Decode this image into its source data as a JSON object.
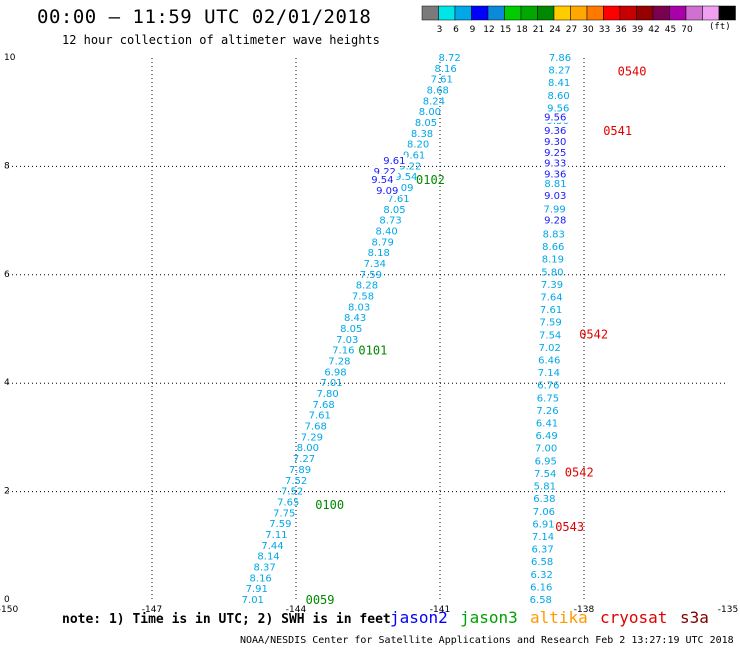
{
  "header": {
    "title": "00:00 – 11:59 UTC 02/01/2018",
    "subtitle": "12 hour collection of altimeter wave heights"
  },
  "colorbar": {
    "colors": [
      "#7a7a7a",
      "#00e5e5",
      "#00a8e8",
      "#0000ff",
      "#0a8ad8",
      "#00cc00",
      "#00a800",
      "#008800",
      "#ffcc00",
      "#ffa800",
      "#ff7800",
      "#ff0000",
      "#c80000",
      "#960000",
      "#7a0050",
      "#aa00aa",
      "#d070d0",
      "#f0a0f0",
      "#000000"
    ],
    "ticks": [
      "3",
      "6",
      "9",
      "12",
      "15",
      "18",
      "21",
      "24",
      "27",
      "30",
      "33",
      "36",
      "39",
      "42",
      "45",
      "70"
    ],
    "unit": "(ft)"
  },
  "chart_data": {
    "type": "scatter",
    "xlim": [
      -150,
      -135
    ],
    "ylim": [
      0,
      10
    ],
    "xticks": [
      -150,
      -147,
      -144,
      -141,
      -138,
      -135
    ],
    "yticks": [
      0,
      2,
      4,
      6,
      8,
      10
    ],
    "grid": true,
    "series": [
      {
        "name": "jason2",
        "color": "#1a1aff",
        "points": [
          {
            "x": -138.6,
            "y": 8.9,
            "label": "9.56"
          },
          {
            "x": -138.6,
            "y": 8.65,
            "label": "9.36"
          },
          {
            "x": -138.6,
            "y": 8.45,
            "label": "9.30"
          },
          {
            "x": -138.6,
            "y": 8.25,
            "label": "9.25"
          },
          {
            "x": -138.6,
            "y": 8.05,
            "label": "9.33"
          },
          {
            "x": -138.6,
            "y": 7.85,
            "label": "9.36"
          },
          {
            "x": -138.6,
            "y": 7.45,
            "label": "9.03"
          },
          {
            "x": -138.6,
            "y": 7.0,
            "label": "9.28"
          },
          {
            "x": -141.95,
            "y": 8.1,
            "label": "9.61"
          },
          {
            "x": -142.15,
            "y": 7.9,
            "label": "9.22"
          },
          {
            "x": -142.2,
            "y": 7.75,
            "label": "9.54"
          },
          {
            "x": -142.1,
            "y": 7.55,
            "label": "9.09"
          }
        ]
      }
    ],
    "tracks": [
      {
        "satellite": "jason3",
        "color": "#00a8e8",
        "x_start": -144.9,
        "y_start": 0.0,
        "x_end": -140.8,
        "y_end": 10.0,
        "values": [
          "7.01",
          "7.91",
          "8.16",
          "8.37",
          "8.14",
          "7.44",
          "7.11",
          "7.59",
          "7.75",
          "7.65",
          "7.52",
          "7.52",
          "7.89",
          "7.27",
          "8.00",
          "7.29",
          "7.68",
          "7.61",
          "7.68",
          "7.80",
          "7.01",
          "6.98",
          "7.28",
          "7.16",
          "7.03",
          "8.05",
          "8.43",
          "8.03",
          "7.58",
          "8.28",
          "7.59",
          "7.34",
          "8.18",
          "8.79",
          "8.40",
          "8.73",
          "8.05",
          "7.61",
          "9.09",
          "9.54",
          "9.22",
          "9.61",
          "8.20",
          "8.38",
          "8.05",
          "8.00",
          "8.24",
          "8.68",
          "7.61",
          "8.16",
          "8.72"
        ],
        "label_color": "#00a8e8"
      },
      {
        "satellite": "cryosat",
        "color": "#00a8e8",
        "x_start": -138.9,
        "y_start": 0.0,
        "x_end": -138.5,
        "y_end": 10.0,
        "values": [
          "6.58",
          "6.16",
          "6.32",
          "6.58",
          "6.37",
          "7.14",
          "6.91",
          "7.06",
          "6.38",
          "5.81",
          "7.54",
          "6.95",
          "7.00",
          "6.49",
          "6.41",
          "7.26",
          "6.75",
          "6.76",
          "7.14",
          "6.46",
          "7.02",
          "7.54",
          "7.59",
          "7.61",
          "7.64",
          "7.39",
          "5.80",
          "8.19",
          "8.66",
          "8.83",
          "9.28",
          "7.99",
          "9.03",
          "8.81",
          "9.36",
          "9.33",
          "9.25",
          "9.30",
          "9.36",
          "9.56",
          "8.60",
          "8.41",
          "8.27",
          "7.86"
        ],
        "label_color": "#00a8e8"
      }
    ],
    "time_labels": [
      {
        "x": -143.8,
        "y": 0.0,
        "text": "0059",
        "color": "#008800"
      },
      {
        "x": -143.6,
        "y": 1.75,
        "text": "0100",
        "color": "#008800"
      },
      {
        "x": -142.7,
        "y": 4.6,
        "text": "0101",
        "color": "#008800"
      },
      {
        "x": -141.5,
        "y": 7.75,
        "text": "0102",
        "color": "#008800"
      },
      {
        "x": -137.3,
        "y": 9.75,
        "text": "0540",
        "color": "#e00000"
      },
      {
        "x": -137.6,
        "y": 8.65,
        "text": "0541",
        "color": "#e00000"
      },
      {
        "x": -138.1,
        "y": 4.9,
        "text": "0542",
        "color": "#e00000"
      },
      {
        "x": -138.4,
        "y": 2.35,
        "text": "0542",
        "color": "#e00000"
      },
      {
        "x": -138.6,
        "y": 1.35,
        "text": "0543",
        "color": "#e00000"
      }
    ]
  },
  "footer": {
    "note": "note: 1) Time is in UTC; 2) SWH is in feet",
    "satellites": [
      {
        "name": "jason2",
        "color": "#0000ff"
      },
      {
        "name": "jason3",
        "color": "#00a000"
      },
      {
        "name": "altika",
        "color": "#ff9900"
      },
      {
        "name": "cryosat",
        "color": "#e00000"
      },
      {
        "name": "s3a",
        "color": "#800000"
      }
    ],
    "credit": "NOAA/NESDIS Center for Satellite Applications and Research   Feb  2 13:27:19 UTC 2018"
  }
}
